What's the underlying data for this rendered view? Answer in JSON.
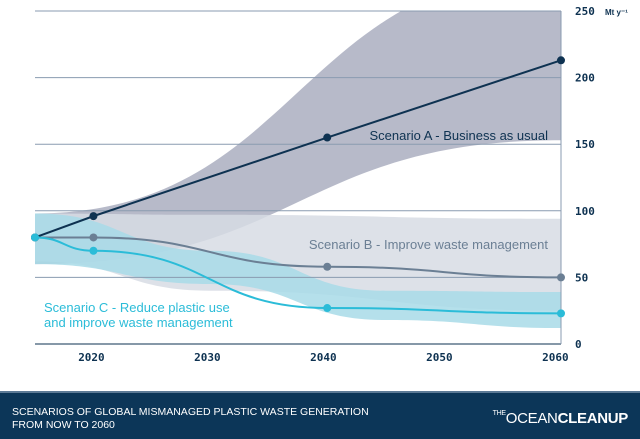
{
  "chart_data": {
    "type": "line",
    "unit_label": "Mt y⁻¹",
    "ylim": [
      0,
      250
    ],
    "yticks": [
      "0",
      "50",
      "100",
      "150",
      "200",
      "250"
    ],
    "xlim": [
      2015,
      2060
    ],
    "xticks": [
      "2020",
      "2030",
      "2040",
      "2050",
      "2060"
    ],
    "series": [
      {
        "name": "Scenario A - Business as usual",
        "color": "#0e3251",
        "band_color": "#b3b6c6",
        "x": [
          2015,
          2020,
          2040,
          2060
        ],
        "values": [
          80,
          96,
          155,
          213
        ],
        "band_x": [
          2015,
          2060
        ],
        "band_upper": [
          98,
          280
        ],
        "band_lower": [
          60,
          153
        ]
      },
      {
        "name": "Scenario B - Improve waste management",
        "color": "#6b7f94",
        "band_color": "#d7dce4",
        "x": [
          2015,
          2020,
          2040,
          2060
        ],
        "values": [
          80,
          80,
          58,
          50
        ],
        "band_x": [
          2015,
          2030,
          2060
        ],
        "band_upper": [
          98,
          97,
          94
        ],
        "band_lower": [
          62,
          40,
          25
        ]
      },
      {
        "name": "Scenario C - Reduce plastic use and improve waste management",
        "label_lines": [
          "Scenario C - Reduce plastic use",
          "and improve waste management"
        ],
        "color": "#2bbcd8",
        "band_color": "#a8dbe8",
        "x": [
          2015,
          2020,
          2040,
          2060
        ],
        "values": [
          80,
          70,
          27,
          23
        ],
        "band_x": [
          2015,
          2030,
          2045,
          2060
        ],
        "band_upper": [
          98,
          70,
          40,
          39
        ],
        "band_lower": [
          60,
          45,
          18,
          12
        ]
      }
    ]
  },
  "footer": {
    "title_line1": "SCENARIOS OF GLOBAL MISMANAGED PLASTIC WASTE GENERATION",
    "title_line2": "FROM NOW TO 2060",
    "logo_the": "THE",
    "logo_ocean": "OCEAN",
    "logo_cleanup": "CLEANUP"
  }
}
